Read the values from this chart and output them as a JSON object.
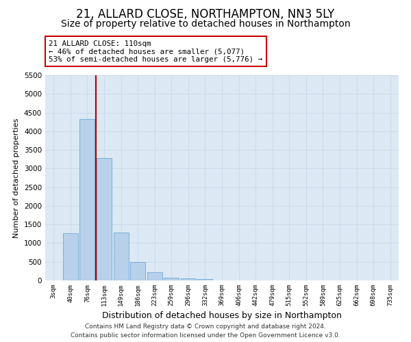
{
  "title": "21, ALLARD CLOSE, NORTHAMPTON, NN3 5LY",
  "subtitle": "Size of property relative to detached houses in Northampton",
  "xlabel": "Distribution of detached houses by size in Northampton",
  "ylabel": "Number of detached properties",
  "footer_line1": "Contains HM Land Registry data © Crown copyright and database right 2024.",
  "footer_line2": "Contains public sector information licensed under the Open Government Licence v3.0.",
  "bar_labels": [
    "3sqm",
    "40sqm",
    "76sqm",
    "113sqm",
    "149sqm",
    "186sqm",
    "223sqm",
    "259sqm",
    "296sqm",
    "332sqm",
    "369sqm",
    "406sqm",
    "442sqm",
    "479sqm",
    "515sqm",
    "552sqm",
    "589sqm",
    "625sqm",
    "662sqm",
    "698sqm",
    "735sqm"
  ],
  "bar_values": [
    0,
    1270,
    4330,
    3290,
    1280,
    490,
    220,
    80,
    60,
    35,
    0,
    0,
    0,
    0,
    0,
    0,
    0,
    0,
    0,
    0,
    0
  ],
  "bar_color": "#b8d0ea",
  "bar_edge_color": "#6aaad4",
  "vline_x": 2.5,
  "vline_color": "#aa0000",
  "annotation_text": "21 ALLARD CLOSE: 110sqm\n← 46% of detached houses are smaller (5,077)\n53% of semi-detached houses are larger (5,776) →",
  "annotation_box_color": "#ffffff",
  "annotation_box_edge": "#cc0000",
  "ylim": [
    0,
    5500
  ],
  "yticks": [
    0,
    500,
    1000,
    1500,
    2000,
    2500,
    3000,
    3500,
    4000,
    4500,
    5000,
    5500
  ],
  "grid_color": "#c8d8ea",
  "background_color": "#dce8f4",
  "title_fontsize": 12,
  "subtitle_fontsize": 10,
  "xlabel_fontsize": 9,
  "ylabel_fontsize": 8
}
